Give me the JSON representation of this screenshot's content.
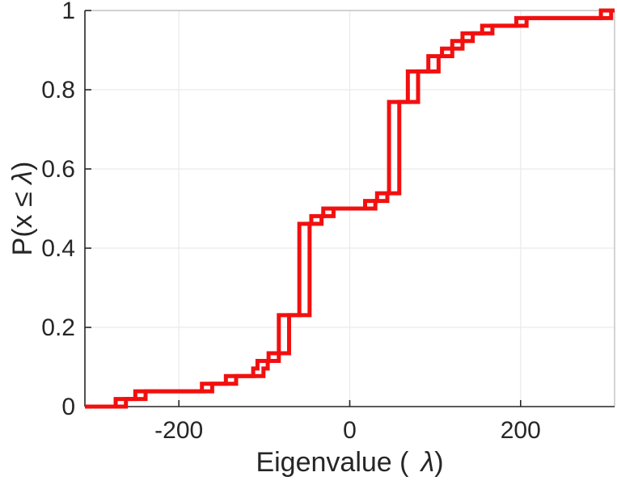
{
  "figure": {
    "background": "#ffffff",
    "axis_color": "#262626",
    "box_light_color": "#b8b8b8",
    "grid_color": "#ebebeb",
    "tick_label_color": "#262626",
    "tick_font_size": 30
  },
  "chart_data": {
    "type": "line",
    "subtype": "empirical-cdf-stairs",
    "title": "",
    "xlabel_text": "Eigenvalue (  λ)",
    "ylabel_text": "P(x ≤ λ)",
    "xlabel_parts": {
      "prefix": "Eigenvalue (",
      "lambda": "λ",
      "suffix": ")"
    },
    "ylabel_parts": {
      "prefix": "P(x ≤ ",
      "lambda": "λ",
      "suffix": ")"
    },
    "xlim": [
      -310,
      310
    ],
    "ylim": [
      0,
      1
    ],
    "xticks": [
      -200,
      0,
      200
    ],
    "xtick_labels": [
      "-200",
      "0",
      "200"
    ],
    "yticks": [
      0,
      0.2,
      0.4,
      0.6,
      0.8,
      1
    ],
    "ytick_labels": [
      "0",
      "0.2",
      "0.4",
      "0.6",
      "0.8",
      "1"
    ],
    "grid": true,
    "legend": false,
    "line_color": "#f1100f",
    "line_width": 5,
    "n_points_per_series": 52,
    "series": [
      {
        "name": "ecdf-1",
        "eigenvalues": [
          -274,
          -251,
          -173,
          -145,
          -113,
          -108,
          -95,
          -83,
          -83,
          -83,
          -83,
          -83,
          -59,
          -59,
          -59,
          -59,
          -59,
          -59,
          -59,
          -59,
          -59,
          -59,
          -59,
          -59,
          -45,
          -31,
          18,
          32,
          46,
          46,
          46,
          46,
          46,
          46,
          46,
          46,
          46,
          46,
          46,
          46,
          68,
          68,
          68,
          68,
          92,
          92,
          108,
          120,
          132,
          155,
          195,
          294
        ]
      },
      {
        "name": "ecdf-2",
        "eigenvalues": [
          -262,
          -239,
          -161,
          -133,
          -101,
          -96,
          -83,
          -71,
          -71,
          -71,
          -71,
          -71,
          -47,
          -47,
          -47,
          -47,
          -47,
          -47,
          -47,
          -47,
          -47,
          -47,
          -47,
          -47,
          -33,
          -19,
          30,
          44,
          58,
          58,
          58,
          58,
          58,
          58,
          58,
          58,
          58,
          58,
          58,
          58,
          80,
          80,
          80,
          80,
          104,
          104,
          120,
          132,
          144,
          167,
          207,
          306
        ]
      }
    ]
  }
}
